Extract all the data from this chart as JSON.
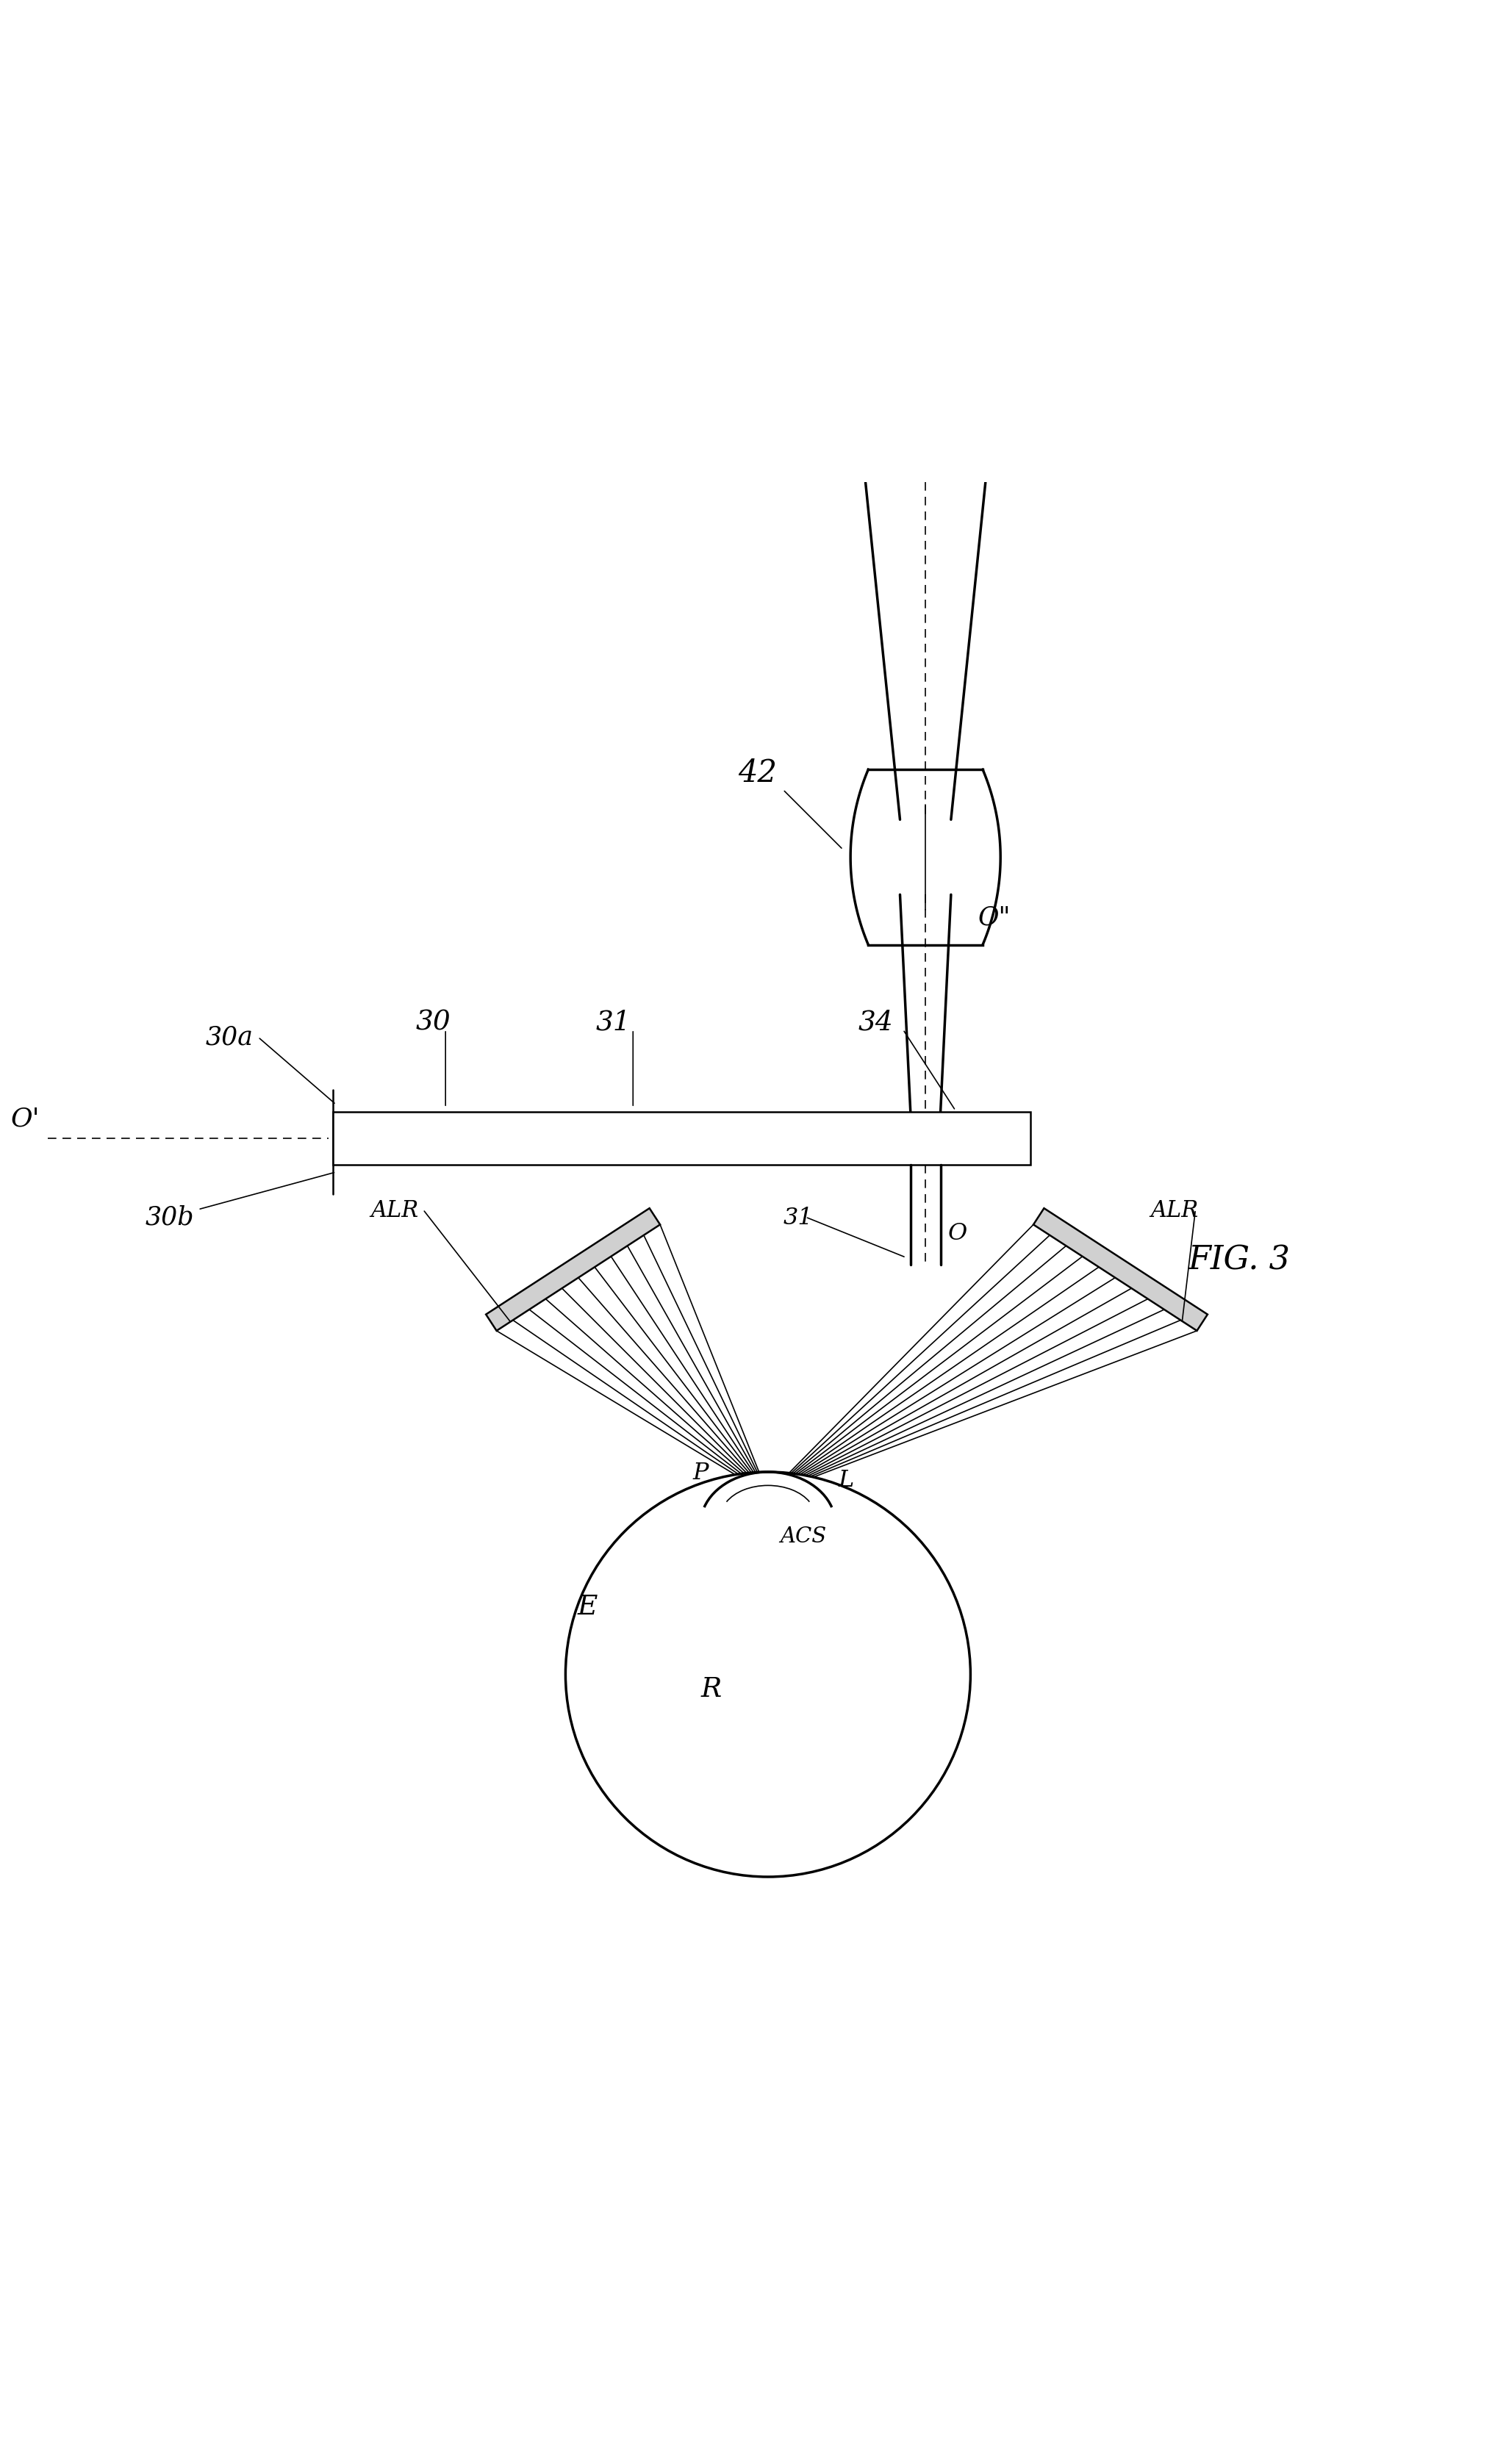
{
  "fig_label": "FIG. 3",
  "bg": "#ffffff",
  "lc": "#000000",
  "fig_w": 20.49,
  "fig_h": 33.53,
  "labels": {
    "O_prime": "O'",
    "O_double_prime": "O\"",
    "O_center": "O",
    "n30a": "30a",
    "n30": "30",
    "n31_top": "31",
    "n34": "34",
    "n42": "42",
    "n30b": "30b",
    "ALR_left": "ALR",
    "ALR_right": "ALR",
    "n31_mid": "31",
    "P": "P",
    "L": "L",
    "ACS": "ACS",
    "E": "E",
    "R": "R",
    "fig3": "FIG. 3"
  }
}
